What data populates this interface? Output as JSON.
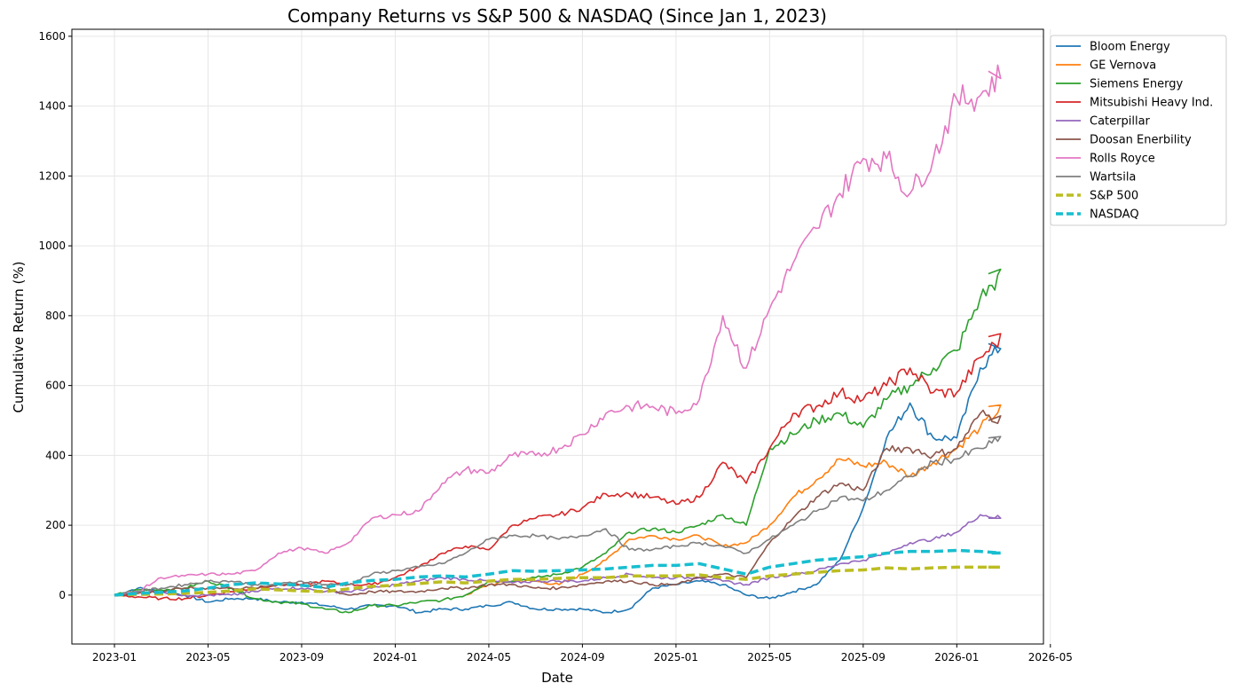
{
  "chart_data": {
    "type": "line",
    "title": "Company Returns vs S&P 500 & NASDAQ (Since Jan 1, 2023)",
    "xlabel": "Date",
    "ylabel": "Cumulative Return (%)",
    "ylim": [
      -140,
      1620
    ],
    "xlim": [
      "2022-11-07",
      "2026-05-16"
    ],
    "grid": true,
    "legend_position": "outside-top-right",
    "x_ticks": [
      "2023-01",
      "2023-05",
      "2023-09",
      "2024-01",
      "2024-05",
      "2024-09",
      "2025-01",
      "2025-05",
      "2025-09",
      "2026-01",
      "2026-05"
    ],
    "y_ticks": [
      0,
      200,
      400,
      600,
      800,
      1000,
      1200,
      1400,
      1600
    ],
    "x": [
      "2023-01",
      "2023-02",
      "2023-03",
      "2023-04",
      "2023-05",
      "2023-06",
      "2023-07",
      "2023-08",
      "2023-09",
      "2023-10",
      "2023-11",
      "2023-12",
      "2024-01",
      "2024-02",
      "2024-03",
      "2024-04",
      "2024-05",
      "2024-06",
      "2024-07",
      "2024-08",
      "2024-09",
      "2024-10",
      "2024-11",
      "2024-12",
      "2025-01",
      "2025-02",
      "2025-03",
      "2025-04",
      "2025-05",
      "2025-06",
      "2025-07",
      "2025-08",
      "2025-09",
      "2025-10",
      "2025-11",
      "2025-12",
      "2026-01",
      "2026-02",
      "2026-03"
    ],
    "series": [
      {
        "name": "Bloom Energy",
        "color": "#1f77b4",
        "style": "solid",
        "values": [
          0,
          20,
          10,
          0,
          -20,
          -10,
          -10,
          -20,
          -20,
          -30,
          -40,
          -30,
          -30,
          -50,
          -40,
          -40,
          -30,
          -20,
          -40,
          -40,
          -40,
          -50,
          -40,
          20,
          30,
          40,
          30,
          0,
          -10,
          10,
          30,
          100,
          250,
          450,
          550,
          450,
          450,
          650,
          720
        ]
      },
      {
        "name": "GE Vernova",
        "color": "#ff7f0e",
        "style": "solid",
        "values": [
          null,
          null,
          null,
          null,
          null,
          null,
          null,
          null,
          null,
          null,
          null,
          null,
          null,
          null,
          null,
          0,
          30,
          40,
          40,
          30,
          60,
          100,
          160,
          170,
          160,
          170,
          140,
          150,
          200,
          280,
          330,
          390,
          370,
          380,
          340,
          380,
          420,
          480,
          540
        ]
      },
      {
        "name": "Siemens Energy",
        "color": "#2ca02c",
        "style": "solid",
        "values": [
          0,
          15,
          15,
          20,
          40,
          20,
          -10,
          -20,
          -25,
          -40,
          -50,
          -30,
          -30,
          -20,
          -15,
          0,
          40,
          40,
          50,
          60,
          80,
          120,
          180,
          190,
          180,
          200,
          230,
          200,
          420,
          460,
          500,
          520,
          480,
          560,
          600,
          650,
          700,
          850,
          920
        ]
      },
      {
        "name": "Mitsubishi Heavy Ind.",
        "color": "#d62728",
        "style": "solid",
        "values": [
          0,
          -5,
          -10,
          -10,
          0,
          10,
          20,
          30,
          30,
          40,
          30,
          30,
          50,
          80,
          120,
          140,
          130,
          200,
          220,
          230,
          250,
          290,
          290,
          280,
          260,
          280,
          380,
          320,
          420,
          520,
          540,
          580,
          560,
          600,
          650,
          580,
          580,
          680,
          740
        ]
      },
      {
        "name": "Caterpillar",
        "color": "#9467bd",
        "style": "solid",
        "values": [
          0,
          10,
          10,
          0,
          0,
          0,
          10,
          20,
          20,
          10,
          10,
          20,
          30,
          40,
          50,
          45,
          40,
          35,
          40,
          40,
          40,
          50,
          60,
          50,
          50,
          50,
          40,
          30,
          50,
          60,
          70,
          90,
          100,
          120,
          150,
          160,
          180,
          230,
          220
        ]
      },
      {
        "name": "Doosan Enerbility",
        "color": "#8c564b",
        "style": "solid",
        "values": [
          0,
          5,
          10,
          20,
          20,
          20,
          20,
          30,
          30,
          20,
          0,
          10,
          10,
          10,
          20,
          20,
          30,
          30,
          20,
          20,
          30,
          40,
          40,
          30,
          30,
          50,
          60,
          50,
          150,
          220,
          280,
          320,
          300,
          420,
          420,
          400,
          420,
          520,
          500
        ]
      },
      {
        "name": "Rolls Royce",
        "color": "#e377c2",
        "style": "solid",
        "values": [
          0,
          10,
          50,
          55,
          60,
          60,
          70,
          120,
          135,
          120,
          150,
          220,
          230,
          240,
          320,
          360,
          350,
          400,
          400,
          420,
          460,
          520,
          540,
          540,
          520,
          560,
          800,
          650,
          820,
          950,
          1050,
          1150,
          1250,
          1250,
          1150,
          1250,
          1420,
          1430,
          1500
        ]
      },
      {
        "name": "Wartsila",
        "color": "#7f7f7f",
        "style": "solid",
        "values": [
          0,
          10,
          20,
          30,
          40,
          40,
          30,
          30,
          40,
          30,
          30,
          60,
          70,
          80,
          90,
          120,
          160,
          170,
          170,
          160,
          170,
          190,
          130,
          130,
          140,
          150,
          140,
          120,
          160,
          200,
          240,
          280,
          270,
          300,
          340,
          380,
          390,
          420,
          450
        ]
      },
      {
        "name": "S&P 500",
        "color": "#bcbd22",
        "style": "dashed",
        "values": [
          0,
          2,
          3,
          5,
          8,
          12,
          18,
          15,
          12,
          10,
          18,
          25,
          28,
          33,
          38,
          35,
          40,
          45,
          45,
          48,
          50,
          50,
          55,
          55,
          55,
          58,
          50,
          45,
          55,
          60,
          65,
          70,
          72,
          78,
          75,
          78,
          80,
          80,
          80
        ]
      },
      {
        "name": "NASDAQ",
        "color": "#17becf",
        "style": "dashed",
        "values": [
          0,
          5,
          8,
          12,
          20,
          30,
          35,
          32,
          28,
          22,
          35,
          42,
          45,
          52,
          55,
          52,
          60,
          70,
          68,
          70,
          72,
          75,
          80,
          85,
          85,
          90,
          75,
          60,
          80,
          90,
          100,
          105,
          110,
          120,
          125,
          125,
          128,
          125,
          120
        ]
      }
    ]
  }
}
